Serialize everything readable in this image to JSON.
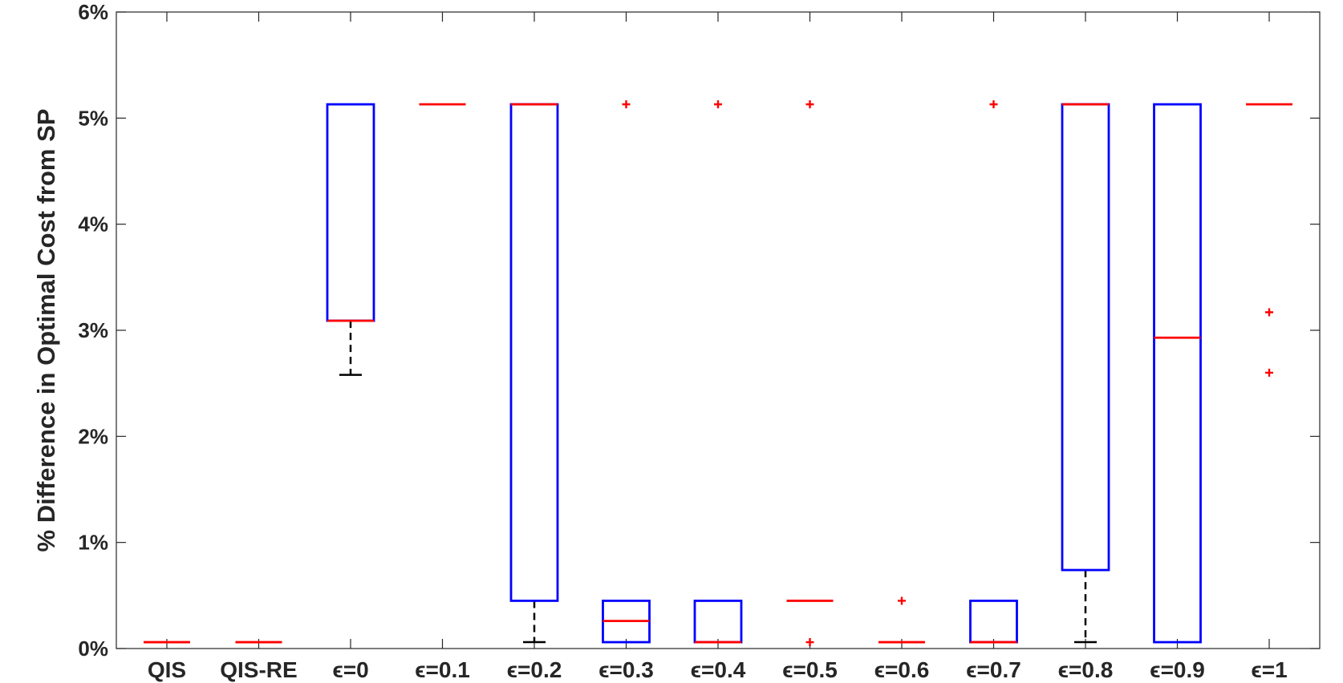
{
  "chart_data": {
    "type": "box",
    "title": "",
    "xlabel": "",
    "ylabel": "% Difference in Optimal Cost from SP",
    "ylim": [
      0,
      6
    ],
    "yticks": [
      0,
      1,
      2,
      3,
      4,
      5,
      6
    ],
    "ytick_labels": [
      "0%",
      "1%",
      "2%",
      "3%",
      "4%",
      "5%",
      "6%"
    ],
    "colors": {
      "box": "#0000ff",
      "median": "#ff0000",
      "whisker": "#000000",
      "outlier": "#ff0000",
      "axis": "#262626"
    },
    "categories": [
      "QIS",
      "QIS-RE",
      "ϵ=0",
      "ϵ=0.1",
      "ϵ=0.2",
      "ϵ=0.3",
      "ϵ=0.4",
      "ϵ=0.5",
      "ϵ=0.6",
      "ϵ=0.7",
      "ϵ=0.8",
      "ϵ=0.9",
      "ϵ=1"
    ],
    "boxes": [
      {
        "q1": 0.06,
        "median": 0.06,
        "q3": 0.06,
        "whisker_low": 0.06,
        "whisker_high": 0.06,
        "outliers": []
      },
      {
        "q1": 0.06,
        "median": 0.06,
        "q3": 0.06,
        "whisker_low": 0.06,
        "whisker_high": 0.06,
        "outliers": []
      },
      {
        "q1": 3.09,
        "median": 3.09,
        "q3": 5.13,
        "whisker_low": 2.58,
        "whisker_high": 5.13,
        "outliers": []
      },
      {
        "q1": 5.13,
        "median": 5.13,
        "q3": 5.13,
        "whisker_low": 5.13,
        "whisker_high": 5.13,
        "outliers": []
      },
      {
        "q1": 0.45,
        "median": 5.13,
        "q3": 5.13,
        "whisker_low": 0.06,
        "whisker_high": 5.13,
        "outliers": []
      },
      {
        "q1": 0.06,
        "median": 0.26,
        "q3": 0.45,
        "whisker_low": 0.06,
        "whisker_high": 0.45,
        "outliers": [
          5.13
        ]
      },
      {
        "q1": 0.06,
        "median": 0.06,
        "q3": 0.45,
        "whisker_low": 0.06,
        "whisker_high": 0.45,
        "outliers": [
          5.13
        ]
      },
      {
        "q1": 0.45,
        "median": 0.45,
        "q3": 0.45,
        "whisker_low": 0.45,
        "whisker_high": 0.45,
        "outliers": [
          0.06,
          5.13
        ]
      },
      {
        "q1": 0.06,
        "median": 0.06,
        "q3": 0.06,
        "whisker_low": 0.06,
        "whisker_high": 0.06,
        "outliers": [
          0.45
        ]
      },
      {
        "q1": 0.06,
        "median": 0.06,
        "q3": 0.45,
        "whisker_low": 0.06,
        "whisker_high": 0.45,
        "outliers": [
          5.13
        ]
      },
      {
        "q1": 0.74,
        "median": 5.13,
        "q3": 5.13,
        "whisker_low": 0.06,
        "whisker_high": 5.13,
        "outliers": []
      },
      {
        "q1": 0.06,
        "median": 2.93,
        "q3": 5.13,
        "whisker_low": 0.06,
        "whisker_high": 5.13,
        "outliers": []
      },
      {
        "q1": 5.13,
        "median": 5.13,
        "q3": 5.13,
        "whisker_low": 5.13,
        "whisker_high": 5.13,
        "outliers": [
          2.6,
          3.17
        ]
      }
    ]
  }
}
